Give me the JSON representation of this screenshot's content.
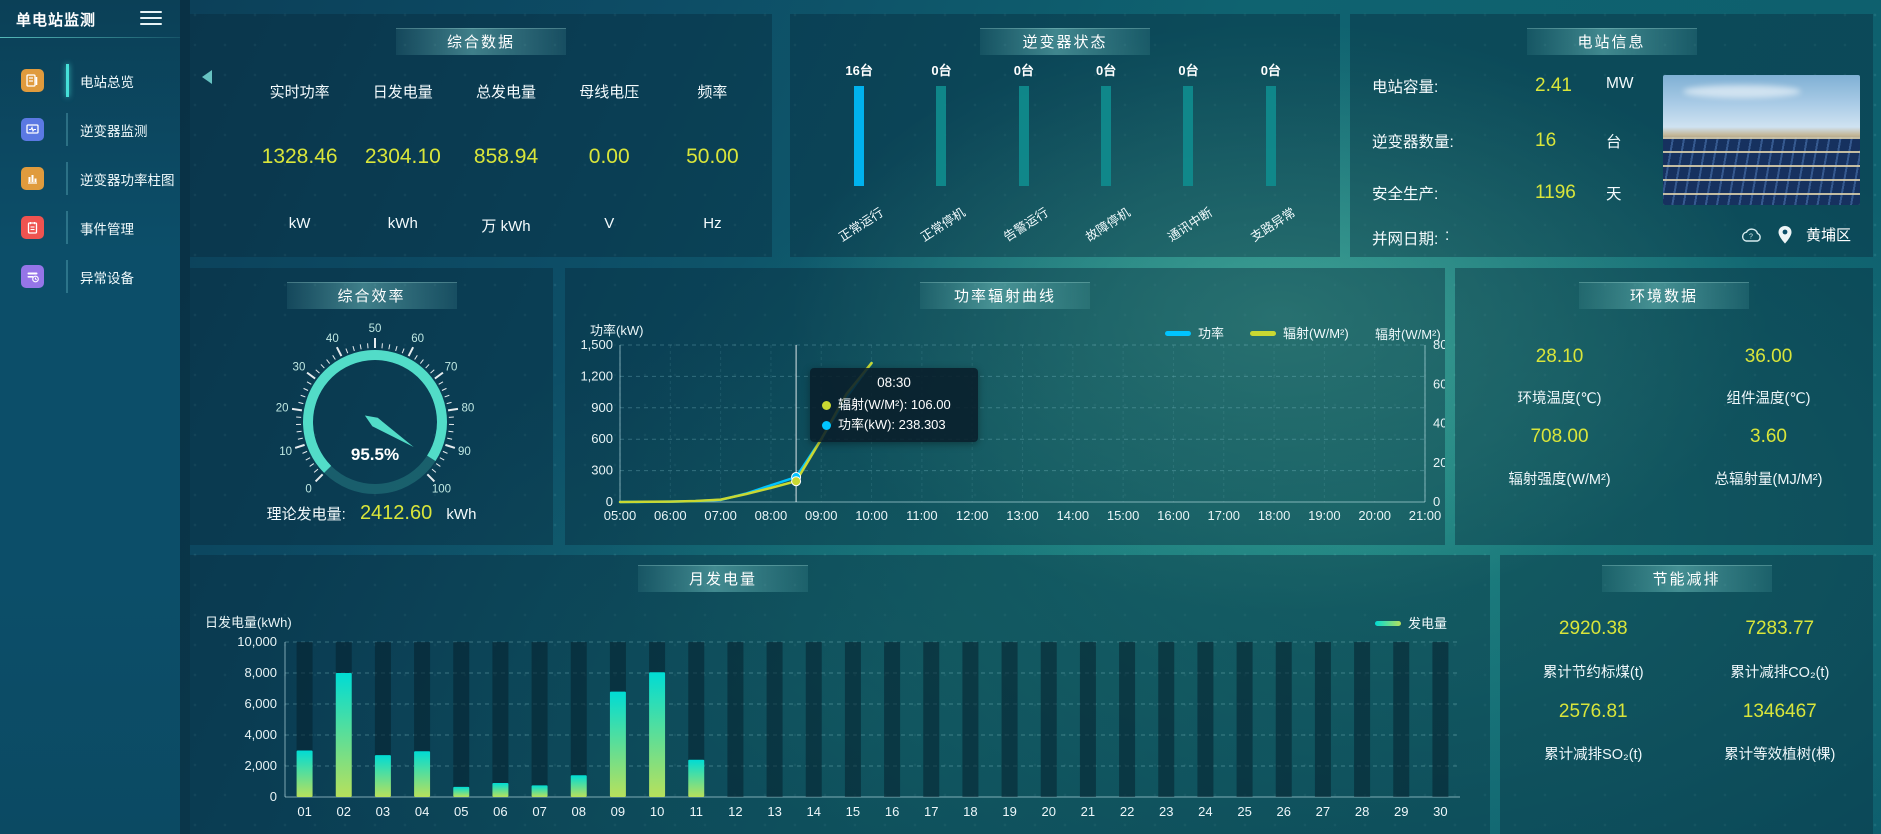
{
  "app": {
    "title": "单电站监测"
  },
  "sidebar": {
    "items": [
      {
        "label": "电站总览",
        "icon": "news-icon",
        "color": "#e09b3d",
        "active": true
      },
      {
        "label": "逆变器监测",
        "icon": "monitor-icon",
        "color": "#5b79e3",
        "active": false
      },
      {
        "label": "逆变器功率柱图",
        "icon": "bar-chart-icon",
        "color": "#e09b3d",
        "active": false
      },
      {
        "label": "事件管理",
        "icon": "notebook-icon",
        "color": "#ef5350",
        "active": false
      },
      {
        "label": "异常设备",
        "icon": "device-alert-icon",
        "color": "#9575e8",
        "active": false
      }
    ]
  },
  "summary": {
    "title": "综合数据",
    "metrics": [
      {
        "label": "实时功率",
        "value": "1328.46",
        "unit": "kW"
      },
      {
        "label": "日发电量",
        "value": "2304.10",
        "unit": "kWh"
      },
      {
        "label": "总发电量",
        "value": "858.94",
        "unit": "万 kWh"
      },
      {
        "label": "母线电压",
        "value": "0.00",
        "unit": "V"
      },
      {
        "label": "频率",
        "value": "50.00",
        "unit": "Hz"
      }
    ]
  },
  "inverter": {
    "title": "逆变器状态",
    "max": 16,
    "bars": [
      {
        "count": "16台",
        "label": "正常运行",
        "value": 16,
        "highlight": true
      },
      {
        "count": "0台",
        "label": "正常停机",
        "value": 0,
        "highlight": false
      },
      {
        "count": "0台",
        "label": "告警运行",
        "value": 0,
        "highlight": false
      },
      {
        "count": "0台",
        "label": "故障停机",
        "value": 0,
        "highlight": false
      },
      {
        "count": "0台",
        "label": "通讯中断",
        "value": 0,
        "highlight": false
      },
      {
        "count": "0台",
        "label": "支路异常",
        "value": 0,
        "highlight": false
      }
    ]
  },
  "station": {
    "title": "电站信息",
    "rows": [
      {
        "label": "电站容量:",
        "value": "2.41",
        "unit": "MW"
      },
      {
        "label": "逆变器数量:",
        "value": "16",
        "unit": "台"
      },
      {
        "label": "安全生产:",
        "value": "1196",
        "unit": "天"
      },
      {
        "label": "并网日期:",
        "value": ":",
        "unit": ""
      }
    ],
    "location": "黄埔区"
  },
  "efficiency": {
    "footer_label": "理论发电量:",
    "footer_value": "2412.60",
    "footer_unit": "kWh"
  },
  "environment": {
    "title": "环境数据",
    "metrics": [
      {
        "value": "28.10",
        "label": "环境温度(℃)"
      },
      {
        "value": "36.00",
        "label": "组件温度(℃)"
      },
      {
        "value": "708.00",
        "label": "辐射强度(W/M²)"
      },
      {
        "value": "3.60",
        "label": "总辐射量(MJ/M²)"
      }
    ]
  },
  "saving": {
    "title": "节能减排",
    "metrics": [
      {
        "value": "2920.38",
        "label": "累计节约标煤(t)"
      },
      {
        "value": "7283.77",
        "label": "累计减排CO₂(t)"
      },
      {
        "value": "2576.81",
        "label": "累计减排SO₂(t)"
      },
      {
        "value": "1346467",
        "label": "累计等效植树(棵)"
      }
    ]
  },
  "chart_data": [
    {
      "id": "efficiency_gauge",
      "type": "gauge",
      "title": "综合效率",
      "min": 0,
      "max": 100,
      "tick_step": 10,
      "value": 95.5,
      "display": "95.5%",
      "tick_labels": [
        "0",
        "10",
        "20",
        "30",
        "40",
        "50",
        "60",
        "70",
        "80",
        "90",
        "100"
      ]
    },
    {
      "id": "power_radiation_curve",
      "type": "line",
      "title": "功率辐射曲线",
      "x_labels": [
        "05:00",
        "06:00",
        "07:00",
        "08:00",
        "09:00",
        "10:00",
        "11:00",
        "12:00",
        "13:00",
        "14:00",
        "15:00",
        "16:00",
        "17:00",
        "18:00",
        "19:00",
        "20:00",
        "21:00"
      ],
      "x_range_hours": [
        5,
        21
      ],
      "y_left": {
        "name": "功率(kW)",
        "min": 0,
        "max": 1500,
        "ticks": [
          "0",
          "300",
          "600",
          "900",
          "1,200",
          "1,500"
        ]
      },
      "y_right": {
        "name": "辐射(W/M²)",
        "min": 0,
        "max": 800,
        "ticks": [
          "0",
          "200",
          "400",
          "600",
          "800"
        ]
      },
      "legend": [
        "功率",
        "辐射(W/M²)"
      ],
      "series": [
        {
          "name": "功率",
          "axis": "left",
          "color": "#00c4ff",
          "points": [
            [
              5,
              0
            ],
            [
              5.5,
              1
            ],
            [
              6,
              3
            ],
            [
              6.5,
              8
            ],
            [
              7,
              20
            ],
            [
              7.5,
              80
            ],
            [
              8,
              160
            ],
            [
              8.5,
              238.3
            ],
            [
              9,
              600
            ],
            [
              9.5,
              1000
            ],
            [
              10,
              1328.5
            ]
          ]
        },
        {
          "name": "辐射(W/M²)",
          "axis": "right",
          "color": "#c9d832",
          "points": [
            [
              5,
              0
            ],
            [
              5.5,
              1
            ],
            [
              6,
              2
            ],
            [
              6.5,
              5
            ],
            [
              7,
              12
            ],
            [
              7.5,
              40
            ],
            [
              8,
              72
            ],
            [
              8.5,
              106
            ],
            [
              9,
              320
            ],
            [
              9.5,
              550
            ],
            [
              10,
              708
            ]
          ]
        }
      ],
      "tooltip": {
        "time": "08:30",
        "hour": 8.5,
        "items": [
          {
            "text": "辐射(W/M²): 106.00",
            "color": "#c9d832",
            "value": 106
          },
          {
            "text": "功率(kW): 238.303",
            "color": "#00c4ff",
            "value": 238.303
          }
        ]
      },
      "grid": true,
      "legend_position": "top-right"
    },
    {
      "id": "monthly_generation",
      "type": "bar",
      "title": "月发电量",
      "ylabel": "日发电量(kWh)",
      "legend": "发电量",
      "ylim": [
        0,
        10000
      ],
      "y_ticks": [
        "0",
        "2,000",
        "4,000",
        "6,000",
        "8,000",
        "10,000"
      ],
      "categories": [
        "01",
        "02",
        "03",
        "04",
        "05",
        "06",
        "07",
        "08",
        "09",
        "10",
        "11",
        "12",
        "13",
        "14",
        "15",
        "16",
        "17",
        "18",
        "19",
        "20",
        "21",
        "22",
        "23",
        "24",
        "25",
        "26",
        "27",
        "28",
        "29",
        "30"
      ],
      "values": [
        3000,
        8000,
        2700,
        2950,
        650,
        900,
        750,
        1400,
        6800,
        8050,
        2400,
        0,
        0,
        0,
        0,
        0,
        0,
        0,
        0,
        0,
        0,
        0,
        0,
        0,
        0,
        0,
        0,
        0,
        0,
        0
      ],
      "grid": true
    }
  ],
  "colors": {
    "accent_value": "#d9e53a",
    "power_line": "#00c4ff",
    "radiation_line": "#c9d832",
    "bar_top": "#00dcd4",
    "bar_bottom": "#b7e05c",
    "inverter_active": "#00b2ee",
    "inverter_track": "#108a8c",
    "gauge": "#52dcc8"
  }
}
